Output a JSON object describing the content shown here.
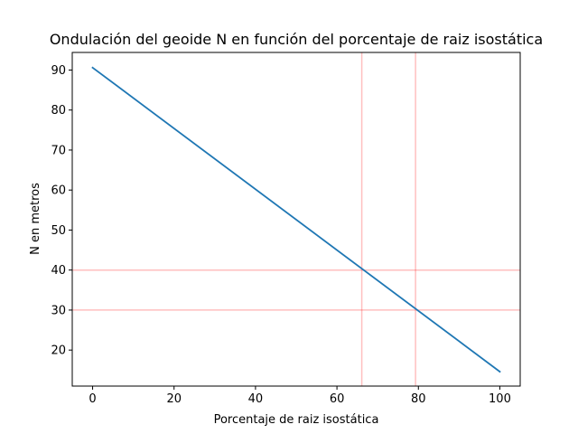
{
  "chart_data": {
    "type": "line",
    "title": "Ondulación del geoide N en función del porcentaje de raiz isostática",
    "xlabel": "Porcentaje de raiz isostática",
    "ylabel": "N en metros",
    "xlim": [
      -5,
      105
    ],
    "ylim": [
      11.0,
      94.4
    ],
    "xticks": [
      0,
      20,
      40,
      60,
      80,
      100
    ],
    "yticks": [
      20,
      30,
      40,
      50,
      60,
      70,
      80,
      90
    ],
    "grid": false,
    "series": [
      {
        "x": [
          0,
          100
        ],
        "y": [
          90.6,
          14.6
        ],
        "color": "#1f77b4"
      }
    ],
    "reference_lines": {
      "vertical_x": [
        66.1,
        79.3
      ],
      "horizontal_y": [
        40,
        30
      ],
      "color": "#ff0000"
    }
  }
}
